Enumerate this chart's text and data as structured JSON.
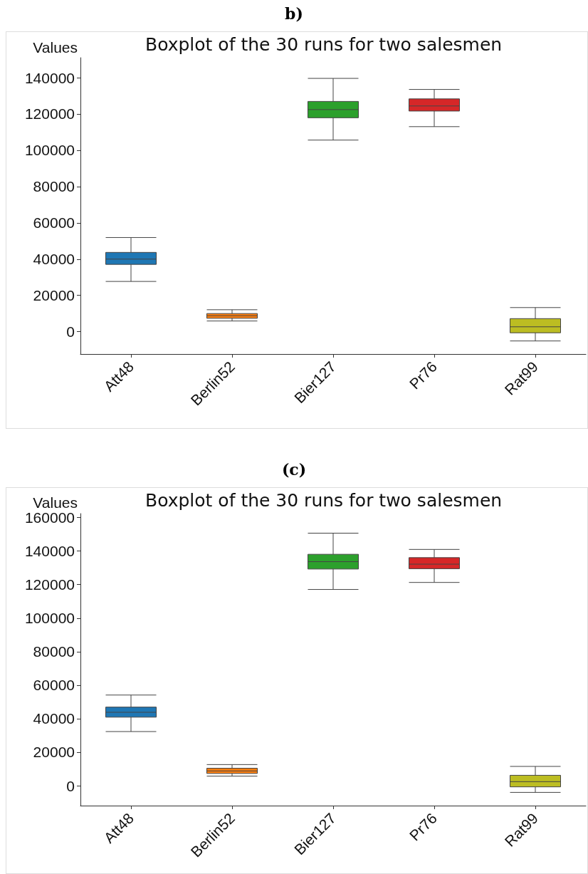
{
  "chart_data": [
    {
      "type": "box",
      "title": "b)",
      "subtitle": "Boxplot of the 30 runs for two salesmen",
      "ylabel": "Values",
      "categories": [
        "Att48",
        "Berlin52",
        "Bier127",
        "Pr76",
        "Rat99"
      ],
      "colors": [
        "#1f77b4",
        "#ff7f0e",
        "#2ca02c",
        "#d62728",
        "#bcbd22"
      ],
      "boxes": [
        {
          "low": 27700,
          "q1": 37100,
          "median": 40000,
          "q3": 43700,
          "high": 51900
        },
        {
          "low": 5900,
          "q1": 7400,
          "median": 8800,
          "q3": 10000,
          "high": 12100
        },
        {
          "low": 105600,
          "q1": 117900,
          "median": 122400,
          "q3": 126900,
          "high": 139600
        },
        {
          "low": 113000,
          "q1": 121600,
          "median": 124400,
          "q3": 128300,
          "high": 133500
        },
        {
          "low": -5100,
          "q1": -600,
          "median": 2700,
          "q3": 7200,
          "high": 13300
        }
      ],
      "ylim": [
        -12300,
        151000
      ],
      "yticks": [
        0,
        20000,
        40000,
        60000,
        80000,
        100000,
        120000,
        140000
      ],
      "grid": false
    },
    {
      "type": "box",
      "title": "(c)",
      "subtitle": "Boxplot of the 30 runs for two salesmen",
      "ylabel": "Values",
      "categories": [
        "Att48",
        "Berlin52",
        "Bier127",
        "Pr76",
        "Rat99"
      ],
      "colors": [
        "#1f77b4",
        "#ff7f0e",
        "#2ca02c",
        "#d62728",
        "#bcbd22"
      ],
      "boxes": [
        {
          "low": 32300,
          "q1": 40900,
          "median": 43800,
          "q3": 46900,
          "high": 54100
        },
        {
          "low": 5700,
          "q1": 7300,
          "median": 8800,
          "q3": 10400,
          "high": 12600
        },
        {
          "low": 117100,
          "q1": 129300,
          "median": 133700,
          "q3": 138100,
          "high": 150700
        },
        {
          "low": 121300,
          "q1": 129500,
          "median": 132200,
          "q3": 136100,
          "high": 141000
        },
        {
          "low": -4000,
          "q1": -700,
          "median": 2400,
          "q3": 6200,
          "high": 11500
        }
      ],
      "ylim": [
        -11900,
        162400
      ],
      "yticks": [
        0,
        20000,
        40000,
        60000,
        80000,
        100000,
        120000,
        140000,
        160000
      ],
      "grid": false
    }
  ]
}
